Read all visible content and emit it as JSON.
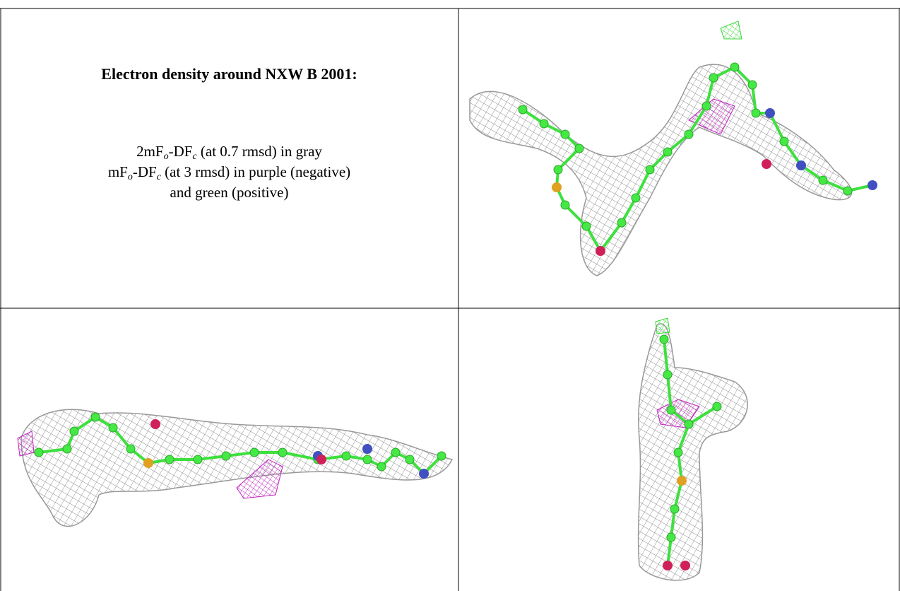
{
  "title": "Electron density around NXW B 2001:",
  "legend": {
    "line1": [
      "2mF",
      "o",
      "-DF",
      "c",
      " (at 0.7 rmsd) in gray"
    ],
    "line2": [
      "mF",
      "o",
      "-DF",
      "c",
      " (at 3 rmsd) in purple (negative)"
    ],
    "line3": "and green (positive)"
  }
}
